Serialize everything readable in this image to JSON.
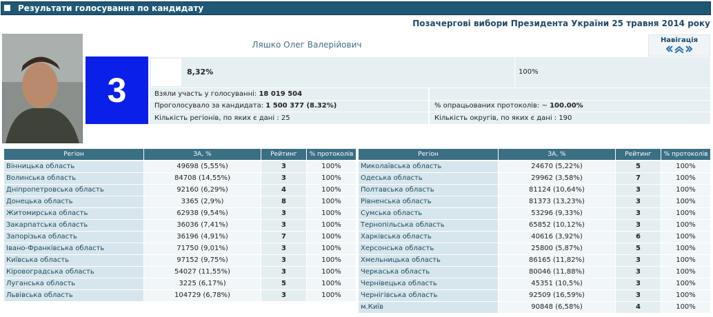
{
  "header": {
    "title": "Результати голосування по кандидату",
    "subtitle": "Позачергові вибори Президента України 25 травня 2014 року"
  },
  "candidate": {
    "name": "Ляшко Олег Валерійович",
    "number": "3",
    "percent": "8,32%",
    "progress": "100%"
  },
  "navigation": {
    "label": "Навігація"
  },
  "stats": {
    "turnout": {
      "label": "Взяли участь у голосуванні:",
      "value": "18 019 504"
    },
    "votes": {
      "label": "Проголосувало за кандидата:",
      "value": "1 500 377 (8.32%)"
    },
    "regions": "Кількість регіонів, по яких є дані : 25",
    "protocols": {
      "label": "% опрацьованих протоколів:  ~",
      "value": "100.00%"
    },
    "districts": "Кількість округів, по яких є дані : 190"
  },
  "tables": [
    {
      "columns": [
        "Регіон",
        "ЗА, %",
        "Рейтинг",
        "% протоколів"
      ],
      "rows": [
        [
          "Вінницька область",
          "49698 (5,55%)",
          3,
          "100%"
        ],
        [
          "Волинська область",
          "84708 (14,55%)",
          3,
          "100%"
        ],
        [
          "Дніпропетровська область",
          "92160 (6,29%)",
          4,
          "100%"
        ],
        [
          "Донецька область",
          "3365 (2,9%)",
          8,
          "100%"
        ],
        [
          "Житомирська область",
          "62938 (9,54%)",
          3,
          "100%"
        ],
        [
          "Закарпатська область",
          "36036 (7,41%)",
          3,
          "100%"
        ],
        [
          "Запорізька область",
          "36196 (4,91%)",
          7,
          "100%"
        ],
        [
          "Івано-Франківська область",
          "71750 (9,01%)",
          3,
          "100%"
        ],
        [
          "Київська область",
          "97152 (9,75%)",
          3,
          "100%"
        ],
        [
          "Кіровоградська область",
          "54027 (11,55%)",
          3,
          "100%"
        ],
        [
          "Луганська область",
          "3225 (6,17%)",
          5,
          "100%"
        ],
        [
          "Львівська область",
          "104729 (6,78%)",
          3,
          "100%"
        ]
      ]
    },
    {
      "columns": [
        "Регіон",
        "ЗА, %",
        "Рейтинг",
        "% протоколів"
      ],
      "rows": [
        [
          "Миколаївська область",
          "24670 (5,22%)",
          5,
          "100%"
        ],
        [
          "Одеська область",
          "29962 (3,58%)",
          7,
          "100%"
        ],
        [
          "Полтавська область",
          "81124 (10,64%)",
          3,
          "100%"
        ],
        [
          "Рівненська область",
          "81373 (13,23%)",
          3,
          "100%"
        ],
        [
          "Сумська область",
          "53296 (9,33%)",
          3,
          "100%"
        ],
        [
          "Тернопільська область",
          "65852 (10,12%)",
          3,
          "100%"
        ],
        [
          "Харківська область",
          "40616 (3,92%)",
          6,
          "100%"
        ],
        [
          "Херсонська область",
          "25800 (5,87%)",
          5,
          "100%"
        ],
        [
          "Хмельницька область",
          "86165 (11,82%)",
          3,
          "100%"
        ],
        [
          "Черкаська область",
          "80046 (11,88%)",
          3,
          "100%"
        ],
        [
          "Чернівецька область",
          "45351 (10,5%)",
          3,
          "100%"
        ],
        [
          "Чернігівська область",
          "92509 (16,59%)",
          3,
          "100%"
        ],
        [
          "м.Київ",
          "90848 (6,58%)",
          4,
          "100%"
        ]
      ]
    }
  ]
}
